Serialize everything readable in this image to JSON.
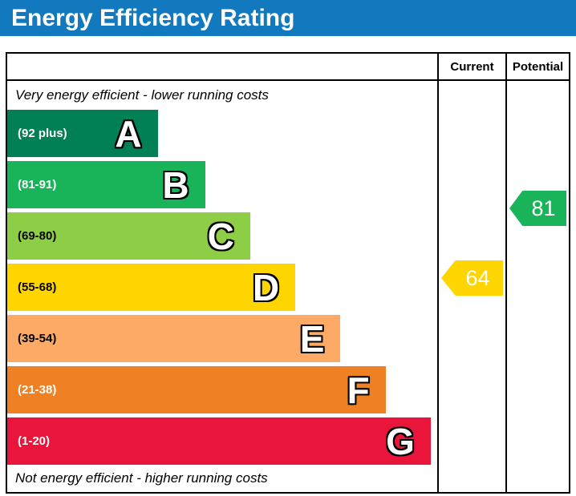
{
  "title": "Energy Efficiency Rating",
  "header": {
    "current": "Current",
    "potential": "Potential"
  },
  "notes": {
    "top": "Very energy efficient - lower running costs",
    "bottom": "Not energy efficient - higher running costs"
  },
  "colors": {
    "title_bar": "#1279be",
    "border": "#000000"
  },
  "chart_data": {
    "type": "bar",
    "subtype": "epc-energy-efficiency-rating",
    "title": "Energy Efficiency Rating",
    "bands": [
      {
        "letter": "A",
        "range_label": "(92 plus)",
        "min": 92,
        "max": 100,
        "color": "#008054",
        "label_color": "#ffffff",
        "width_pct": 35
      },
      {
        "letter": "B",
        "range_label": "(81-91)",
        "min": 81,
        "max": 91,
        "color": "#19b459",
        "label_color": "#ffffff",
        "width_pct": 46
      },
      {
        "letter": "C",
        "range_label": "(69-80)",
        "min": 69,
        "max": 80,
        "color": "#8dce46",
        "label_color": "#000000",
        "width_pct": 56.5
      },
      {
        "letter": "D",
        "range_label": "(55-68)",
        "min": 55,
        "max": 68,
        "color": "#ffd500",
        "label_color": "#000000",
        "width_pct": 67
      },
      {
        "letter": "E",
        "range_label": "(39-54)",
        "min": 39,
        "max": 54,
        "color": "#fcaa65",
        "label_color": "#000000",
        "width_pct": 77.5
      },
      {
        "letter": "F",
        "range_label": "(21-38)",
        "min": 21,
        "max": 38,
        "color": "#ef8023",
        "label_color": "#ffffff",
        "width_pct": 88
      },
      {
        "letter": "G",
        "range_label": "(1-20)",
        "min": 1,
        "max": 20,
        "color": "#e9153b",
        "label_color": "#ffffff",
        "width_pct": 98.5
      }
    ],
    "current": {
      "label": "Current",
      "value": 64,
      "band": "D",
      "color": "#ffd500"
    },
    "potential": {
      "label": "Potential",
      "value": 81,
      "band": "B",
      "color": "#19b459"
    }
  }
}
